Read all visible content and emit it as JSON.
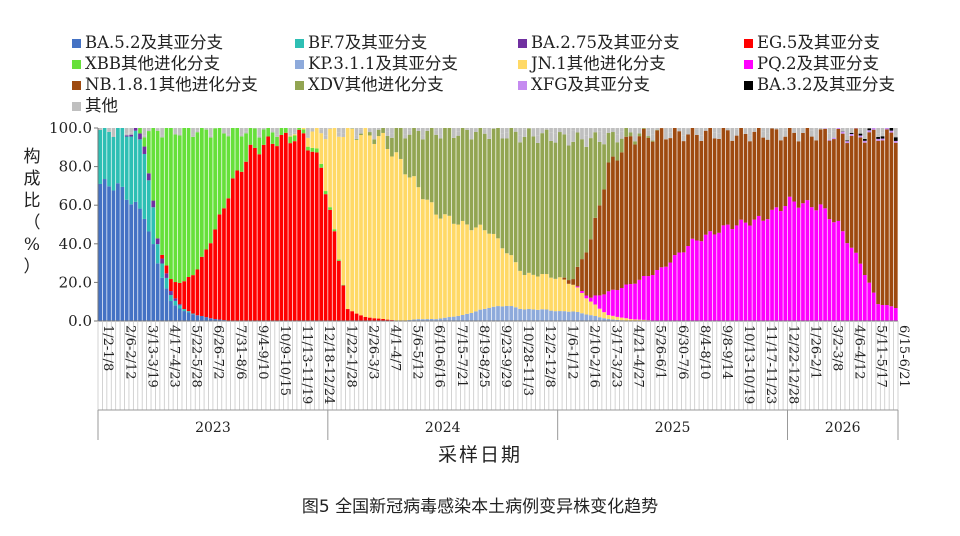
{
  "caption": "图5 全国新冠病毒感染本土病例变异株变化趋势",
  "chart_data": {
    "type": "stacked-bar",
    "title": "",
    "xlabel": "采样日期",
    "ylabel_chars": [
      "构",
      "成",
      "比",
      "（",
      "%",
      "）"
    ],
    "ylim": [
      0,
      100
    ],
    "yticks": [
      "0.0",
      "20.0",
      "40.0",
      "60.0",
      "80.0",
      "100.0"
    ],
    "legend_placement": "top",
    "series": [
      {
        "name": "BA.5.2及其亚分支",
        "color": "#4472C4"
      },
      {
        "name": "BF.7及其亚分支",
        "color": "#2EBFB4"
      },
      {
        "name": "BA.2.75及其亚分支",
        "color": "#7030A0"
      },
      {
        "name": "EG.5及其亚分支",
        "color": "#FF0000"
      },
      {
        "name": "XBB其他进化分支",
        "color": "#66E03A"
      },
      {
        "name": "KP.3.1.1及其亚分支",
        "color": "#8EAADB"
      },
      {
        "name": "JN.1其他进化分支",
        "color": "#FFD966"
      },
      {
        "name": "PQ.2及其亚分支",
        "color": "#FF00FF"
      },
      {
        "name": "NB.1.8.1其他进化分支",
        "color": "#9E4A10"
      },
      {
        "name": "XDV其他进化分支",
        "color": "#92A552"
      },
      {
        "name": "XFG及其亚分支",
        "color": "#C58BF0"
      },
      {
        "name": "BA.3.2及其亚分支",
        "color": "#000000"
      },
      {
        "name": "其他",
        "color": "#BFBFBF"
      }
    ],
    "x_tick_labels": [
      "1/2-1/8",
      "2/6-2/12",
      "3/13-3/19",
      "4/17-4/23",
      "5/22-5/28",
      "6/26-7/2",
      "7/31-8/6",
      "9/4-9/10",
      "10/9-10/15",
      "11/13-11/19",
      "12/18-12/24",
      "1/22-1/28",
      "2/26-3/3",
      "4/1-4/7",
      "5/6-5/12",
      "6/10-6/16",
      "7/15-7/21",
      "8/19-8/25",
      "9/23-9/29",
      "10/28-11/3",
      "12/2-12/8",
      "1/6-1/12",
      "2/10-2/16",
      "3/17-3/23",
      "4/21-4/27",
      "5/26-6/1",
      "6/30-7/6",
      "8/4-8/10",
      "9/8-9/14",
      "10/13-10/19",
      "11/17-11/23",
      "12/22-12/28",
      "1/26-2/1",
      "3/2-3/8",
      "4/6-4/12",
      "5/11-5/17",
      "6/15-6/21"
    ],
    "years": [
      {
        "label": "2023",
        "weeks": 52
      },
      {
        "label": "2024",
        "weeks": 52
      },
      {
        "label": "2025",
        "weeks": 52
      },
      {
        "label": "2026",
        "weeks": 25
      }
    ],
    "keyframes": [
      {
        "week": 0,
        "BA.5.2及其亚分支": 71,
        "BF.7及其亚分支": 28,
        "其他": 1
      },
      {
        "week": 4,
        "BA.5.2及其亚分支": 70,
        "BF.7及其亚分支": 29,
        "其他": 1
      },
      {
        "week": 7,
        "BA.5.2及其亚分支": 62,
        "BF.7及其亚分支": 36,
        "BA.2.75及其亚分支": 1,
        "其他": 1
      },
      {
        "week": 10,
        "BA.5.2及其亚分支": 55,
        "BF.7及其亚分支": 35,
        "BA.2.75及其亚分支": 4,
        "XBB其他进化分支": 5,
        "其他": 1
      },
      {
        "week": 13,
        "BA.5.2及其亚分支": 30,
        "BF.7及其亚分支": 10,
        "BA.2.75及其亚分支": 3,
        "EG.5及其亚分支": 0,
        "XBB其他进化分支": 56,
        "其他": 1
      },
      {
        "week": 16,
        "BA.5.2及其亚分支": 10,
        "BF.7及其亚分支": 3,
        "BA.2.75及其亚分支": 2,
        "EG.5及其亚分支": 6,
        "XBB其他进化分支": 78,
        "其他": 1
      },
      {
        "week": 19,
        "BA.5.2及其亚分支": 5,
        "BF.7及其亚分支": 1,
        "EG.5及其亚分支": 14,
        "XBB其他进化分支": 79,
        "其他": 1
      },
      {
        "week": 22,
        "BA.5.2及其亚分支": 3,
        "EG.5及其亚分支": 24,
        "XBB其他进化分支": 72,
        "其他": 1
      },
      {
        "week": 26,
        "BA.5.2及其亚分支": 1,
        "EG.5及其亚分支": 46,
        "XBB其他进化分支": 52,
        "其他": 1
      },
      {
        "week": 30,
        "EG.5及其亚分支": 72,
        "XBB其他进化分支": 27,
        "其他": 1
      },
      {
        "week": 34,
        "EG.5及其亚分支": 88,
        "XBB其他进化分支": 11,
        "其他": 1
      },
      {
        "week": 40,
        "EG.5及其亚分支": 94,
        "XBB其他进化分支": 5,
        "其他": 1
      },
      {
        "week": 46,
        "EG.5及其亚分支": 96,
        "XBB其他进化分支": 2,
        "JN.1其他进化分支": 1,
        "其他": 1
      },
      {
        "week": 50,
        "EG.5及其亚分支": 80,
        "XBB其他进化分支": 2,
        "JN.1其他进化分支": 16,
        "其他": 2
      },
      {
        "week": 53,
        "EG.5及其亚分支": 45,
        "XBB其他进化分支": 1,
        "JN.1其他进化分支": 52,
        "其他": 2
      },
      {
        "week": 56,
        "EG.5及其亚分支": 6,
        "JN.1其他进化分支": 92,
        "其他": 2
      },
      {
        "week": 60,
        "EG.5及其亚分支": 2,
        "JN.1其他进化分支": 95,
        "XDV其他进化分支": 1,
        "其他": 2
      },
      {
        "week": 64,
        "EG.5及其亚分支": 1,
        "JN.1其他进化分支": 93,
        "XDV其他进化分支": 4,
        "其他": 2
      },
      {
        "week": 68,
        "JN.1其他进化分支": 82,
        "XDV其他进化分支": 16,
        "其他": 2
      },
      {
        "week": 72,
        "KP.3.1.1及其亚分支": 1,
        "JN.1其他进化分支": 68,
        "XDV其他进化分支": 29,
        "其他": 2
      },
      {
        "week": 76,
        "KP.3.1.1及其亚分支": 1,
        "JN.1其他进化分支": 55,
        "XDV其他进化分支": 42,
        "其他": 2
      },
      {
        "week": 82,
        "KP.3.1.1及其亚分支": 3,
        "JN.1其他进化分支": 47,
        "XDV其他进化分支": 48,
        "其他": 2
      },
      {
        "week": 88,
        "KP.3.1.1及其亚分支": 7,
        "JN.1其他进化分支": 40,
        "XDV其他进化分支": 51,
        "其他": 2
      },
      {
        "week": 92,
        "KP.3.1.1及其亚分支": 8,
        "JN.1其他进化分支": 28,
        "XDV其他进化分支": 61,
        "其他": 3
      },
      {
        "week": 96,
        "KP.3.1.1及其亚分支": 6,
        "JN.1其他进化分支": 18,
        "XDV其他进化分支": 72,
        "其他": 4
      },
      {
        "week": 100,
        "KP.3.1.1及其亚分支": 6,
        "JN.1其他进化分支": 18,
        "XDV其他进化分支": 72,
        "其他": 4
      },
      {
        "week": 104,
        "KP.3.1.1及其亚分支": 5,
        "JN.1其他进化分支": 17,
        "XDV其他进化分支": 73,
        "其他": 5
      },
      {
        "week": 107,
        "KP.3.1.1及其亚分支": 5,
        "JN.1其他进化分支": 14,
        "NB.1.8.1其他进化分支": 3,
        "XDV其他进化分支": 72,
        "其他": 6
      },
      {
        "week": 111,
        "KP.3.1.1及其亚分支": 3,
        "JN.1其他进化分支": 7,
        "PQ.2及其亚分支": 2,
        "NB.1.8.1其他进化分支": 30,
        "XDV其他进化分支": 52,
        "其他": 6
      },
      {
        "week": 115,
        "KP.3.1.1及其亚分支": 1,
        "JN.1其他进化分支": 2,
        "PQ.2及其亚分支": 12,
        "NB.1.8.1其他进化分支": 65,
        "XDV其他进化分支": 15,
        "其他": 5
      },
      {
        "week": 120,
        "JN.1其他进化分支": 1,
        "PQ.2及其亚分支": 18,
        "NB.1.8.1其他进化分支": 76,
        "XDV其他进化分支": 2,
        "其他": 3
      },
      {
        "week": 127,
        "PQ.2及其亚分支": 27,
        "NB.1.8.1其他进化分支": 70,
        "其他": 3
      },
      {
        "week": 134,
        "PQ.2及其亚分支": 41,
        "NB.1.8.1其他进化分支": 56,
        "其他": 3
      },
      {
        "week": 142,
        "PQ.2及其亚分支": 49,
        "NB.1.8.1其他进化分支": 48,
        "其他": 3
      },
      {
        "week": 150,
        "PQ.2及其亚分支": 53,
        "NB.1.8.1其他进化分支": 44,
        "其他": 3
      },
      {
        "week": 156,
        "PQ.2及其亚分支": 62,
        "NB.1.8.1其他进化分支": 35,
        "其他": 3
      },
      {
        "week": 163,
        "PQ.2及其亚分支": 59,
        "NB.1.8.1其他进化分支": 38,
        "XFG及其亚分支": 0,
        "其他": 3
      },
      {
        "week": 167,
        "PQ.2及其亚分支": 50,
        "NB.1.8.1其他进化分支": 46,
        "XFG及其亚分支": 1,
        "BA.3.2及其亚分支": 0,
        "其他": 3
      },
      {
        "week": 172,
        "PQ.2及其亚分支": 30,
        "NB.1.8.1其他进化分支": 66,
        "XFG及其亚分支": 1,
        "BA.3.2及其亚分支": 1,
        "其他": 2
      },
      {
        "week": 176,
        "PQ.2及其亚分支": 9,
        "NB.1.8.1其他进化分支": 87,
        "XFG及其亚分支": 1,
        "BA.3.2及其亚分支": 1,
        "其他": 2
      },
      {
        "week": 180,
        "PQ.2及其亚分支": 7,
        "NB.1.8.1其他进化分支": 89,
        "XFG及其亚分支": 1,
        "BA.3.2及其亚分支": 2,
        "其他": 1
      }
    ]
  }
}
